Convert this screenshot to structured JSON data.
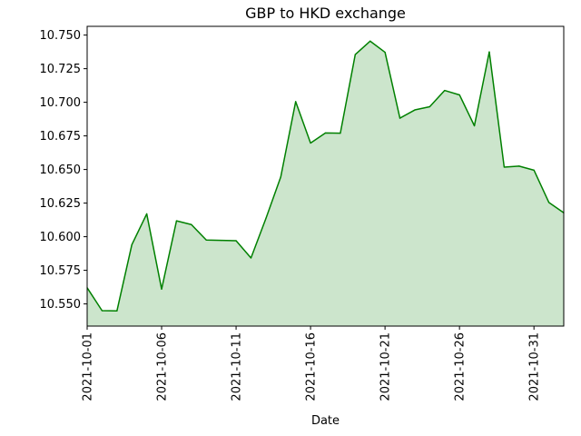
{
  "chart_data": {
    "type": "area",
    "title": "GBP to HKD exchange",
    "xlabel": "Date",
    "ylabel": "",
    "grid": false,
    "line_color": "#008000",
    "fill_color": "#cce5cc",
    "xlim": [
      "2021-10-01",
      "2021-11-02"
    ],
    "ylim": [
      10.5335,
      10.7565
    ],
    "y_ticks": [
      "10.550",
      "10.575",
      "10.600",
      "10.625",
      "10.650",
      "10.675",
      "10.700",
      "10.725",
      "10.750"
    ],
    "x_ticks": [
      "2021-10-01",
      "2021-10-06",
      "2021-10-11",
      "2021-10-16",
      "2021-10-21",
      "2021-10-26",
      "2021-10-31"
    ],
    "x": [
      "2021-10-01",
      "2021-10-02",
      "2021-10-03",
      "2021-10-04",
      "2021-10-05",
      "2021-10-06",
      "2021-10-07",
      "2021-10-08",
      "2021-10-09",
      "2021-10-10",
      "2021-10-11",
      "2021-10-12",
      "2021-10-13",
      "2021-10-14",
      "2021-10-15",
      "2021-10-16",
      "2021-10-17",
      "2021-10-18",
      "2021-10-19",
      "2021-10-20",
      "2021-10-21",
      "2021-10-22",
      "2021-10-23",
      "2021-10-24",
      "2021-10-25",
      "2021-10-26",
      "2021-10-27",
      "2021-10-28",
      "2021-10-29",
      "2021-10-30",
      "2021-10-31",
      "2021-11-01",
      "2021-11-02"
    ],
    "values": [
      10.562,
      10.545,
      10.5448,
      10.594,
      10.617,
      10.561,
      10.6118,
      10.609,
      10.5975,
      10.5973,
      10.597,
      10.5842,
      10.6135,
      10.6445,
      10.7005,
      10.6697,
      10.6772,
      10.677,
      10.7355,
      10.7455,
      10.7372,
      10.6882,
      10.6943,
      10.6967,
      10.7088,
      10.7055,
      10.6825,
      10.7375,
      10.6518,
      10.6525,
      10.6495,
      10.6255,
      10.6178
    ]
  }
}
